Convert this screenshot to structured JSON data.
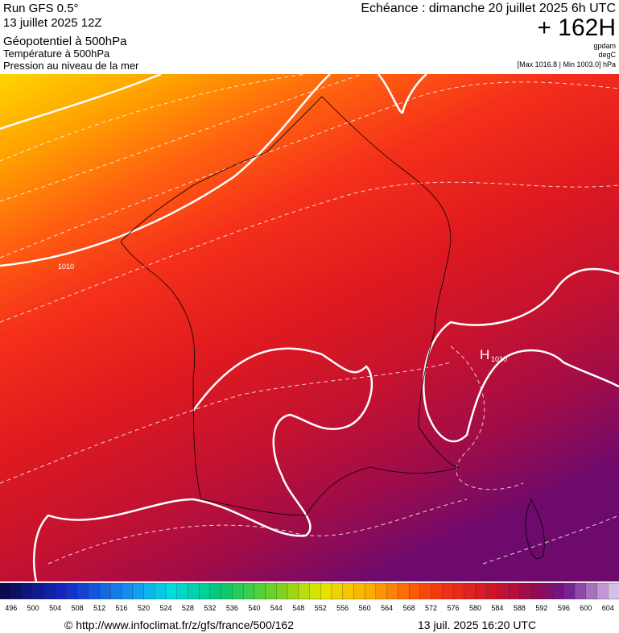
{
  "header": {
    "run": "Run GFS 0.5°",
    "date": "13 juillet 2025 12Z",
    "title": "Géopotentiel à 500hPa",
    "subtitle1": "Température à 500hPa",
    "subtitle2": "Pression au niveau de la mer",
    "forecast": "Echéance : dimanche 20 juillet 2025 6h UTC",
    "lead": "+ 162H",
    "unit1": "gpdam",
    "unit2": "degC",
    "range": "[Max 1016.8 | Min 1003.0] hPa"
  },
  "map": {
    "labels": [
      "1010",
      "H",
      "1010"
    ]
  },
  "colorbar": {
    "labels": [
      496,
      500,
      504,
      508,
      512,
      516,
      520,
      524,
      528,
      532,
      536,
      540,
      544,
      548,
      552,
      556,
      560,
      564,
      568,
      572,
      576,
      580,
      584,
      588,
      592,
      596,
      600,
      604
    ]
  },
  "footer": {
    "source": "© http://www.infoclimat.fr/z/gfs/france/500/162",
    "generated": "13 juil. 2025 16:20 UTC"
  }
}
